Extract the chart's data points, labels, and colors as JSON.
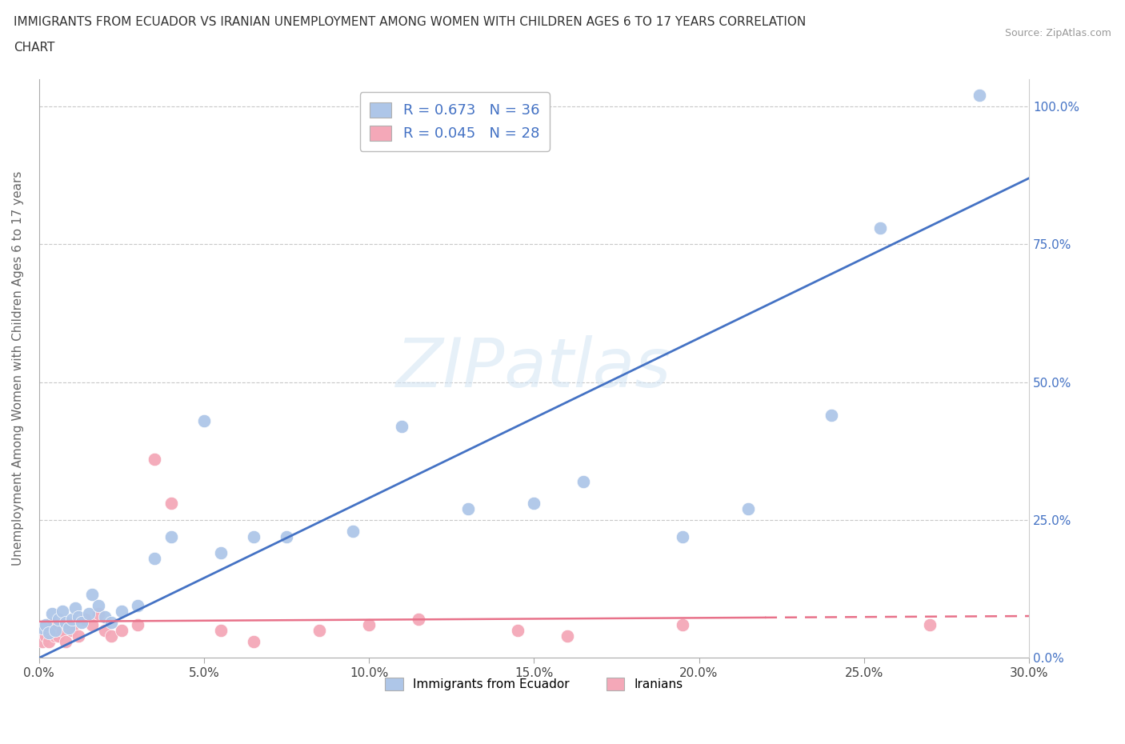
{
  "title_line1": "IMMIGRANTS FROM ECUADOR VS IRANIAN UNEMPLOYMENT AMONG WOMEN WITH CHILDREN AGES 6 TO 17 YEARS CORRELATION",
  "title_line2": "CHART",
  "source": "Source: ZipAtlas.com",
  "ylabel": "Unemployment Among Women with Children Ages 6 to 17 years",
  "r_ecuador": 0.673,
  "n_ecuador": 36,
  "r_iranian": 0.045,
  "n_iranian": 28,
  "ecuador_color": "#aec6e8",
  "iranian_color": "#f4a8b8",
  "line_ecuador_color": "#4472c4",
  "line_iranian_color": "#e8728a",
  "xlim": [
    0.0,
    0.3
  ],
  "ylim": [
    0.0,
    1.05
  ],
  "ecuador_x": [
    0.001,
    0.002,
    0.003,
    0.004,
    0.005,
    0.006,
    0.007,
    0.008,
    0.009,
    0.01,
    0.011,
    0.012,
    0.013,
    0.015,
    0.016,
    0.018,
    0.02,
    0.022,
    0.025,
    0.03,
    0.035,
    0.04,
    0.05,
    0.055,
    0.065,
    0.075,
    0.095,
    0.11,
    0.13,
    0.15,
    0.165,
    0.195,
    0.215,
    0.24,
    0.255,
    0.285
  ],
  "ecuador_y": [
    0.055,
    0.06,
    0.045,
    0.08,
    0.05,
    0.07,
    0.085,
    0.065,
    0.055,
    0.07,
    0.09,
    0.075,
    0.065,
    0.08,
    0.115,
    0.095,
    0.075,
    0.065,
    0.085,
    0.095,
    0.18,
    0.22,
    0.43,
    0.19,
    0.22,
    0.22,
    0.23,
    0.42,
    0.27,
    0.28,
    0.32,
    0.22,
    0.27,
    0.44,
    0.78,
    1.02
  ],
  "iranian_x": [
    0.001,
    0.002,
    0.003,
    0.004,
    0.005,
    0.006,
    0.007,
    0.008,
    0.01,
    0.012,
    0.014,
    0.016,
    0.018,
    0.02,
    0.022,
    0.025,
    0.03,
    0.035,
    0.04,
    0.055,
    0.065,
    0.085,
    0.1,
    0.115,
    0.145,
    0.16,
    0.195,
    0.27
  ],
  "iranian_y": [
    0.03,
    0.04,
    0.03,
    0.06,
    0.04,
    0.04,
    0.05,
    0.03,
    0.05,
    0.04,
    0.07,
    0.06,
    0.08,
    0.05,
    0.04,
    0.05,
    0.06,
    0.36,
    0.28,
    0.05,
    0.03,
    0.05,
    0.06,
    0.07,
    0.05,
    0.04,
    0.06,
    0.06
  ],
  "line_ec_x0": 0.0,
  "line_ec_y0": 0.0,
  "line_ec_x1": 0.3,
  "line_ec_y1": 0.87,
  "line_ir_x0": 0.0,
  "line_ir_y0": 0.066,
  "line_ir_x1": 0.3,
  "line_ir_y1": 0.076
}
